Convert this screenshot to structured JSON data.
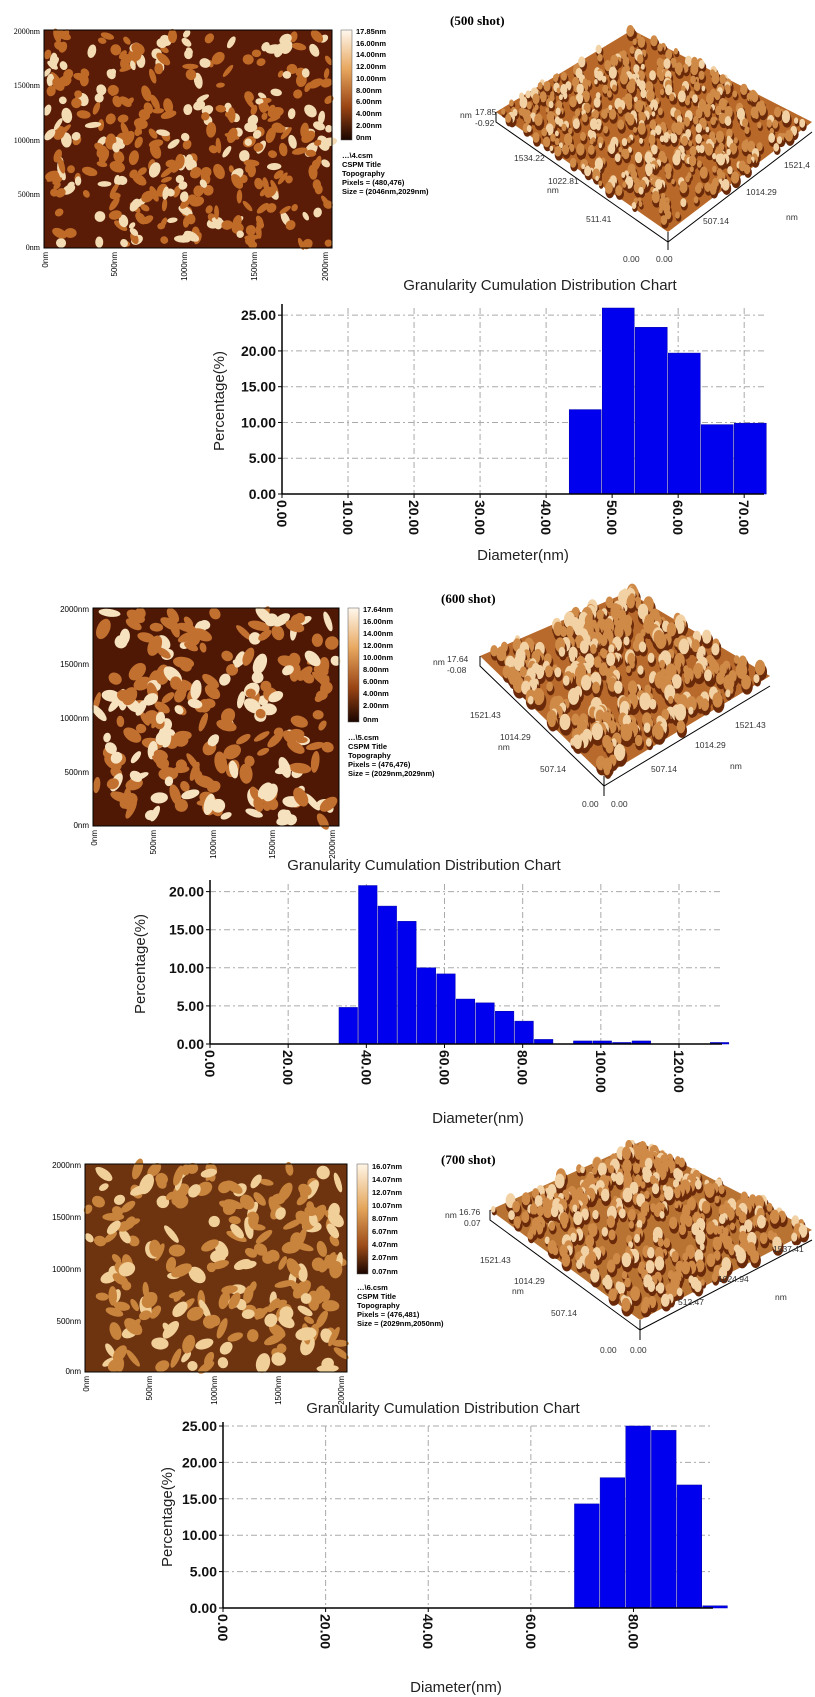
{
  "panels": [
    {
      "shot_label": "(500 shot)",
      "afm2d": {
        "y_ticks": [
          "2000nm",
          "1500nm",
          "1000nm",
          "500nm",
          "0nm"
        ],
        "x_ticks": [
          "0nm",
          "500nm",
          "1000nm",
          "1500nm",
          "2000nm"
        ],
        "colorbar": [
          "17.85nm",
          "16.00nm",
          "14.00nm",
          "12.00nm",
          "10.00nm",
          "8.00nm",
          "6.00nm",
          "4.00nm",
          "2.00nm",
          "0nm"
        ],
        "info": [
          "…\\4.csm",
          "CSPM Title",
          "Topography",
          "Pixels = (480,476)",
          "Size = (2046nm,2029nm)"
        ],
        "colors": {
          "light": "#f3dcb4",
          "mid": "#c06a28",
          "dark": "#5a1c06"
        }
      },
      "afm3d": {
        "z_max": "17.85",
        "z_min": "-0.92",
        "z_unit": "nm",
        "left_axis": [
          "1534.22",
          "1022.81",
          "511.41"
        ],
        "left_unit": "nm",
        "right_axis": [
          "1521,4",
          "1014.29",
          "507.14"
        ],
        "right_unit": "nm",
        "origin": [
          "0.00",
          "0.00"
        ]
      }
    },
    {
      "shot_label": "(600 shot)",
      "afm2d": {
        "y_ticks": [
          "2000nm",
          "1500nm",
          "1000nm",
          "500nm",
          "0nm"
        ],
        "x_ticks": [
          "0nm",
          "500nm",
          "1000nm",
          "1500nm",
          "2000nm"
        ],
        "colorbar": [
          "17.64nm",
          "16.00nm",
          "14.00nm",
          "12.00nm",
          "10.00nm",
          "8.00nm",
          "6.00nm",
          "4.00nm",
          "2.00nm",
          "0nm"
        ],
        "info": [
          "…\\5.csm",
          "CSPM Title",
          "Topography",
          "Pixels = (476,476)",
          "Size = (2029nm,2029nm)"
        ],
        "colors": {
          "light": "#f6e2be",
          "mid": "#c27030",
          "dark": "#4e1804"
        }
      },
      "afm3d": {
        "z_max": "17.64",
        "z_min": "-0.08",
        "z_unit": "nm",
        "left_axis": [
          "1521.43",
          "1014.29",
          "507.14"
        ],
        "left_unit": "nm",
        "right_axis": [
          "1521.43",
          "1014.29",
          "507.14"
        ],
        "right_unit": "nm",
        "origin": [
          "0.00",
          "0.00"
        ]
      }
    },
    {
      "shot_label": "(700 shot)",
      "afm2d": {
        "y_ticks": [
          "2000nm",
          "1500nm",
          "1000nm",
          "500nm",
          "0nm"
        ],
        "x_ticks": [
          "0nm",
          "500nm",
          "1000nm",
          "1500nm",
          "2000nm"
        ],
        "colorbar": [
          "16.07nm",
          "14.07nm",
          "12.07nm",
          "10.07nm",
          "8.07nm",
          "6.07nm",
          "4.07nm",
          "2.07nm",
          "0.07nm"
        ],
        "info": [
          "…\\6.csm",
          "CSPM Title",
          "Topography",
          "Pixels = (476,481)",
          "Size = (2029nm,2050nm)"
        ],
        "colors": {
          "light": "#f1cf98",
          "mid": "#c8843c",
          "dark": "#6e3410"
        }
      },
      "afm3d": {
        "z_max": "16.76",
        "z_min": "0.07",
        "z_unit": "nm",
        "left_axis": [
          "1521.43",
          "1014.29",
          "507.14"
        ],
        "left_unit": "nm",
        "right_axis": [
          "1537.41",
          "1024.94",
          "512.47"
        ],
        "right_unit": "nm",
        "origin": [
          "0.00",
          "0.00"
        ]
      }
    }
  ],
  "chart_data": [
    {
      "type": "bar",
      "title": "Granularity Cumulation Distribution  Chart",
      "xlabel": "Diameter(nm)",
      "ylabel": "Percentage(%)",
      "xlim": [
        0,
        73
      ],
      "ylim": [
        0,
        26
      ],
      "x_ticks": [
        "0.00",
        "10.00",
        "20.00",
        "30.00",
        "40.00",
        "50.00",
        "60.00",
        "70.00"
      ],
      "x_tick_values": [
        0,
        10,
        20,
        30,
        40,
        50,
        60,
        70
      ],
      "y_ticks": [
        "0.00",
        "5.00",
        "10.00",
        "15.00",
        "20.00",
        "25.00"
      ],
      "y_tick_values": [
        0,
        5,
        10,
        15,
        20,
        25
      ],
      "bin_starts": [
        43.5,
        48.5,
        53.5,
        58.5,
        63.5,
        68.5
      ],
      "bin_width": 5,
      "values": [
        11.8,
        26.0,
        23.3,
        19.7,
        9.7,
        9.9
      ],
      "bar_color": "#0000ee",
      "grid": true
    },
    {
      "type": "bar",
      "title": "Granularity Cumulation Distribution  Chart",
      "xlabel": "Diameter(nm)",
      "ylabel": "Percentage(%)",
      "xlim": [
        0,
        131
      ],
      "ylim": [
        0,
        21
      ],
      "x_ticks": [
        "0.00",
        "20.00",
        "40.00",
        "60.00",
        "80.00",
        "100.00",
        "120.00"
      ],
      "x_tick_values": [
        0,
        20,
        40,
        60,
        80,
        100,
        120
      ],
      "y_ticks": [
        "0.00",
        "5.00",
        "10.00",
        "15.00",
        "20.00"
      ],
      "y_tick_values": [
        0,
        5,
        10,
        15,
        20
      ],
      "bin_starts": [
        33,
        38,
        43,
        48,
        53,
        58,
        63,
        68,
        73,
        78,
        83,
        88,
        93,
        98,
        103,
        108,
        113,
        118,
        123,
        128
      ],
      "bin_width": 5,
      "values": [
        4.8,
        20.8,
        18.1,
        16.1,
        10.0,
        9.2,
        5.9,
        5.4,
        4.3,
        3.0,
        0.6,
        0.0,
        0.4,
        0.4,
        0.2,
        0.4,
        0.0,
        0.0,
        0.0,
        0.2
      ],
      "bar_color": "#0000ee",
      "grid": true
    },
    {
      "type": "bar",
      "title": "Granularity Cumulation Distribution  Chart",
      "xlabel": "Diameter(nm)",
      "ylabel": "Percentage(%)",
      "xlim": [
        0,
        95.5
      ],
      "ylim": [
        0,
        25
      ],
      "x_ticks": [
        "0.00",
        "20.00",
        "40.00",
        "60.00",
        "80.00"
      ],
      "x_tick_values": [
        0,
        20,
        40,
        60,
        80
      ],
      "y_ticks": [
        "0.00",
        "5.00",
        "10.00",
        "15.00",
        "20.00",
        "25.00"
      ],
      "y_tick_values": [
        0,
        5,
        10,
        15,
        20,
        25
      ],
      "bin_starts": [
        68.5,
        73.5,
        78.5,
        83.5,
        88.5,
        93.5
      ],
      "bin_width": 5,
      "values": [
        14.3,
        17.9,
        25.0,
        24.4,
        16.9,
        0.3
      ],
      "bar_color": "#0000ee",
      "grid": true
    }
  ]
}
